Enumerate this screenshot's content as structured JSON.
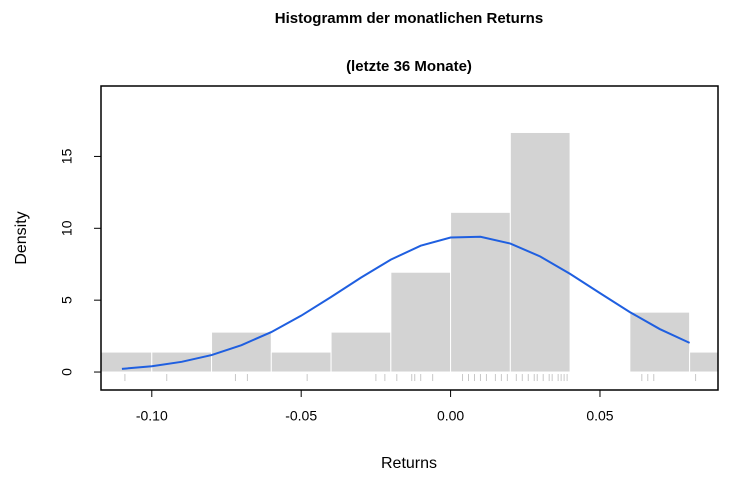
{
  "chart_data": {
    "type": "histogram",
    "title": "Histogramm der monatlichen Returns",
    "subtitle": "(letzte 36 Monate)",
    "x_label": "Returns",
    "y_label": "Density",
    "bins": [
      -0.12,
      -0.1,
      -0.08,
      -0.06,
      -0.04,
      -0.02,
      0.0,
      0.02,
      0.04,
      0.06,
      0.08,
      0.1
    ],
    "values": [
      1.389,
      1.389,
      2.778,
      1.389,
      2.778,
      6.944,
      11.111,
      16.667,
      0,
      4.167,
      1.389
    ],
    "color": "#d3d3d3",
    "density_curve": {
      "color": "#1f5fe0",
      "x": [
        -0.11,
        -0.1,
        -0.09,
        -0.08,
        -0.07,
        -0.06,
        -0.05,
        -0.04,
        -0.03,
        -0.02,
        -0.01,
        0.0,
        0.01,
        0.02,
        0.03,
        0.04,
        0.05,
        0.06,
        0.07,
        0.08
      ],
      "y": [
        0.22,
        0.4,
        0.71,
        1.18,
        1.87,
        2.78,
        3.92,
        5.22,
        6.57,
        7.82,
        8.79,
        9.36,
        9.41,
        8.94,
        8.04,
        6.83,
        5.49,
        4.17,
        2.99,
        2.03
      ]
    },
    "rug": [
      -0.109,
      -0.095,
      -0.072,
      -0.068,
      -0.048,
      -0.025,
      -0.022,
      -0.018,
      -0.013,
      -0.012,
      -0.01,
      -0.006,
      0.004,
      0.006,
      0.008,
      0.01,
      0.012,
      0.015,
      0.017,
      0.019,
      0.022,
      0.024,
      0.026,
      0.028,
      0.029,
      0.031,
      0.033,
      0.034,
      0.036,
      0.037,
      0.038,
      0.039,
      0.064,
      0.066,
      0.068,
      0.082
    ],
    "xlim": [
      -0.117,
      0.0895
    ],
    "ylim": [
      -1.25,
      19.9
    ],
    "xticks": [
      {
        "value": -0.1,
        "label": "-0.10"
      },
      -0.05,
      {
        "value": 0.0,
        "label": "0.00"
      },
      0.05
    ],
    "yticks": [
      0,
      5,
      10,
      15
    ]
  }
}
